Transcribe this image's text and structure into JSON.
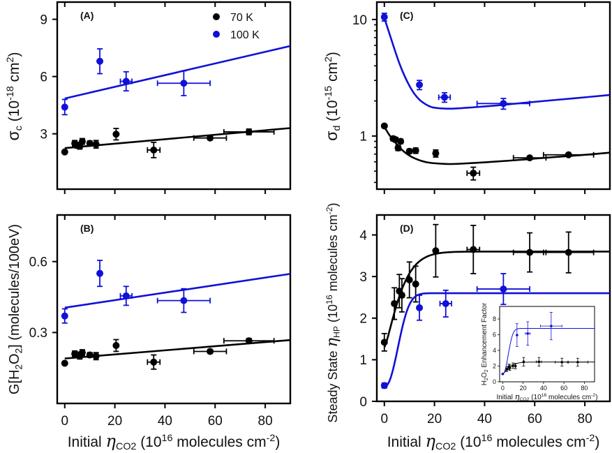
{
  "colors": {
    "series_70K": "#000000",
    "series_100K": "#1010d8",
    "frame": "#000000"
  },
  "legend": {
    "entries": [
      {
        "label": "70 K",
        "series": "70K"
      },
      {
        "label": "100 K",
        "series": "100K"
      }
    ],
    "placement": "top-right of panel A"
  },
  "shared_xlabel": {
    "prefix": "Initial ",
    "symbol": "η",
    "sub": "CO2",
    "unit_open": " (10",
    "unit_exp": "16",
    "unit_mid": " molecules cm",
    "unit_exp2": "-2",
    "unit_close": ")"
  },
  "chart_data": [
    {
      "id": "A",
      "panel_label": "(A)",
      "type": "scatter",
      "title": "",
      "xlabel": "Initial η_CO2 (10^16 molecules cm^-2)",
      "ylabel": "σc (10^-18 cm^2)",
      "ylabel_parts": {
        "sym": "σ",
        "sub": "c",
        "unit_a": " (10",
        "exp": "-18",
        "unit_b": " cm",
        "exp2": "2",
        "unit_c": ")"
      },
      "xlim": [
        -3,
        90
      ],
      "ylim": [
        0.1,
        9.9
      ],
      "yscale": "linear",
      "xticks": [
        0,
        20,
        40,
        60,
        80
      ],
      "xtick_labels_visible": false,
      "yticks": [
        3,
        6,
        9
      ],
      "ytick_labels": [
        "3",
        "6",
        "9"
      ],
      "series": [
        {
          "name": "70 K",
          "color_key": "series_70K",
          "points": [
            {
              "x": 0,
              "y": 2.05,
              "xe": 0,
              "ye": 0
            },
            {
              "x": 4,
              "y": 2.5,
              "xe": 0.8,
              "ye": 0.15
            },
            {
              "x": 5,
              "y": 2.4,
              "xe": 0.8,
              "ye": 0.15
            },
            {
              "x": 6,
              "y": 2.35,
              "xe": 0.8,
              "ye": 0.15
            },
            {
              "x": 7,
              "y": 2.6,
              "xe": 0.8,
              "ye": 0.15
            },
            {
              "x": 10,
              "y": 2.5,
              "xe": 0.8,
              "ye": 0.12
            },
            {
              "x": 12.5,
              "y": 2.45,
              "xe": 0.8,
              "ye": 0.2
            },
            {
              "x": 20.5,
              "y": 2.98,
              "xe": 0.6,
              "ye": 0.3
            },
            {
              "x": 35.5,
              "y": 2.15,
              "xe": 2.5,
              "ye": 0.4
            },
            {
              "x": 58,
              "y": 2.78,
              "xe": 6.5,
              "ye": 0.1
            },
            {
              "x": 73.5,
              "y": 3.1,
              "xe": 10,
              "ye": 0.15
            }
          ],
          "fit": {
            "kind": "linear",
            "x": [
              0,
              90
            ],
            "y": [
              2.25,
              3.3
            ]
          }
        },
        {
          "name": "100 K",
          "color_key": "series_100K",
          "points": [
            {
              "x": 0,
              "y": 4.4,
              "xe": 0,
              "ye": 0.4
            },
            {
              "x": 14,
              "y": 6.8,
              "xe": 0,
              "ye": 0.65
            },
            {
              "x": 24.5,
              "y": 5.75,
              "xe": 2.3,
              "ye": 0.5
            },
            {
              "x": 47.5,
              "y": 5.65,
              "xe": 10.5,
              "ye": 0.65
            }
          ],
          "fit": {
            "kind": "linear",
            "x": [
              0,
              90
            ],
            "y": [
              4.85,
              7.6
            ]
          }
        }
      ]
    },
    {
      "id": "B",
      "panel_label": "(B)",
      "type": "scatter",
      "title": "",
      "xlabel": "Initial η_CO2 (10^16 molecules cm^-2)",
      "ylabel": "G[H2O2] (molecules/100eV)",
      "ylabel_parts": {
        "a": "G[H",
        "s1": "2",
        "b": "O",
        "s2": "2",
        "c": "] (molecules/100eV)"
      },
      "xlim": [
        -3,
        90
      ],
      "ylim": [
        0.0,
        0.797
      ],
      "yscale": "linear",
      "xticks": [
        0,
        20,
        40,
        60,
        80
      ],
      "xtick_labels": [
        "0",
        "20",
        "40",
        "60",
        "80"
      ],
      "yticks": [
        0.3,
        0.6
      ],
      "ytick_labels": [
        "0.3",
        "0.6"
      ],
      "series": [
        {
          "name": "70 K",
          "color_key": "series_70K",
          "points": [
            {
              "x": 0,
              "y": 0.17,
              "xe": 0,
              "ye": 0
            },
            {
              "x": 4,
              "y": 0.21,
              "xe": 0.8,
              "ye": 0.012
            },
            {
              "x": 5,
              "y": 0.205,
              "xe": 0.8,
              "ye": 0.012
            },
            {
              "x": 6,
              "y": 0.2,
              "xe": 0.8,
              "ye": 0.012
            },
            {
              "x": 7,
              "y": 0.215,
              "xe": 0.8,
              "ye": 0.012
            },
            {
              "x": 10,
              "y": 0.205,
              "xe": 0.8,
              "ye": 0.01
            },
            {
              "x": 12.5,
              "y": 0.2,
              "xe": 0.8,
              "ye": 0.015
            },
            {
              "x": 20.5,
              "y": 0.245,
              "xe": 0.6,
              "ye": 0.025
            },
            {
              "x": 35.5,
              "y": 0.175,
              "xe": 2.5,
              "ye": 0.03
            },
            {
              "x": 58,
              "y": 0.22,
              "xe": 6.5,
              "ye": 0.008
            },
            {
              "x": 73.5,
              "y": 0.265,
              "xe": 10,
              "ye": 0.01
            }
          ],
          "fit": {
            "kind": "linear",
            "x": [
              0,
              90
            ],
            "y": [
              0.19,
              0.268
            ]
          }
        },
        {
          "name": "100 K",
          "color_key": "series_100K",
          "points": [
            {
              "x": 0,
              "y": 0.37,
              "xe": 0,
              "ye": 0.03
            },
            {
              "x": 14,
              "y": 0.55,
              "xe": 0,
              "ye": 0.055
            },
            {
              "x": 24.5,
              "y": 0.455,
              "xe": 2.3,
              "ye": 0.04
            },
            {
              "x": 47.5,
              "y": 0.435,
              "xe": 10.5,
              "ye": 0.05
            }
          ],
          "fit": {
            "kind": "linear",
            "x": [
              0,
              90
            ],
            "y": [
              0.405,
              0.548
            ]
          }
        }
      ]
    },
    {
      "id": "C",
      "panel_label": "(C)",
      "type": "scatter",
      "title": "",
      "xlabel": "Initial η_CO2 (10^16 molecules cm^-2)",
      "ylabel": "σd (10^-15 cm^2)",
      "ylabel_parts": {
        "sym": "σ",
        "sub": "d",
        "unit_a": " (10",
        "exp": "-15",
        "unit_b": " cm",
        "exp2": "2",
        "unit_c": ")"
      },
      "xlim": [
        -3,
        90
      ],
      "ylim": [
        0.35,
        14.1
      ],
      "yscale": "log",
      "xticks": [
        0,
        20,
        40,
        60,
        80
      ],
      "xtick_labels_visible": false,
      "yticks": [
        1,
        10
      ],
      "ytick_labels": [
        "1",
        "10"
      ],
      "series": [
        {
          "name": "70 K",
          "color_key": "series_70K",
          "points": [
            {
              "x": 0,
              "y": 1.22,
              "xe": 0,
              "ye": 0
            },
            {
              "x": 3.5,
              "y": 0.95,
              "xe": 0.8,
              "ye": 0.04
            },
            {
              "x": 4.5,
              "y": 0.93,
              "xe": 0.8,
              "ye": 0.04
            },
            {
              "x": 5.5,
              "y": 0.79,
              "xe": 0.8,
              "ye": 0.04
            },
            {
              "x": 6.5,
              "y": 0.9,
              "xe": 0.8,
              "ye": 0.04
            },
            {
              "x": 10,
              "y": 0.74,
              "xe": 0.8,
              "ye": 0.03
            },
            {
              "x": 12.5,
              "y": 0.75,
              "xe": 0.8,
              "ye": 0.04
            },
            {
              "x": 20.5,
              "y": 0.71,
              "xe": 0.6,
              "ye": 0.05
            },
            {
              "x": 35.5,
              "y": 0.48,
              "xe": 2.5,
              "ye": 0.06
            },
            {
              "x": 58,
              "y": 0.65,
              "xe": 6.5,
              "ye": 0.02
            },
            {
              "x": 73.5,
              "y": 0.69,
              "xe": 10,
              "ye": 0.02
            }
          ],
          "fit": {
            "kind": "curve",
            "x": [
              0,
              2,
              4,
              6,
              8,
              10,
              12,
              15,
              18,
              22,
              26,
              30,
              40,
              50,
              60,
              70,
              80,
              90
            ],
            "y": [
              1.2,
              1.02,
              0.9,
              0.8,
              0.73,
              0.68,
              0.645,
              0.61,
              0.59,
              0.58,
              0.575,
              0.578,
              0.595,
              0.615,
              0.64,
              0.665,
              0.69,
              0.72
            ]
          }
        },
        {
          "name": "100 K",
          "color_key": "series_100K",
          "points": [
            {
              "x": 0,
              "y": 10.5,
              "xe": 0,
              "ye": 0.8
            },
            {
              "x": 14,
              "y": 2.75,
              "xe": 0,
              "ye": 0.25
            },
            {
              "x": 24,
              "y": 2.15,
              "xe": 2.3,
              "ye": 0.2
            },
            {
              "x": 47.5,
              "y": 1.9,
              "xe": 10.5,
              "ye": 0.2
            }
          ],
          "fit": {
            "kind": "curve",
            "x": [
              0,
              2,
              4,
              6,
              8,
              10,
              12,
              14,
              16,
              18,
              20,
              24,
              28,
              35,
              45,
              55,
              65,
              75,
              90
            ],
            "y": [
              10.3,
              7.6,
              5.6,
              4.2,
              3.3,
              2.7,
              2.3,
              2.05,
              1.9,
              1.8,
              1.75,
              1.72,
              1.72,
              1.76,
              1.83,
              1.92,
              2.01,
              2.1,
              2.25
            ]
          }
        }
      ]
    },
    {
      "id": "D",
      "panel_label": "(D)",
      "type": "scatter",
      "title": "",
      "xlabel": "Initial η_CO2 (10^16 molecules cm^-2)",
      "ylabel": "Steady State η_HP (10^16 molecules cm^-2)",
      "ylabel_parts": {
        "a": "Steady State ",
        "sym": "η",
        "sub": "HP",
        "b": " (10",
        "exp": "16",
        "c": " molecules cm",
        "exp2": "-2",
        "d": ")"
      },
      "xlim": [
        -3,
        90
      ],
      "ylim": [
        0,
        4.48
      ],
      "yscale": "linear",
      "xticks": [
        0,
        20,
        40,
        60,
        80
      ],
      "xtick_labels": [
        "0",
        "20",
        "40",
        "60",
        "80"
      ],
      "yticks": [
        0,
        1,
        2,
        3,
        4
      ],
      "ytick_labels": [
        "0",
        "1",
        "2",
        "3",
        "4"
      ],
      "series": [
        {
          "name": "70 K",
          "color_key": "series_70K",
          "points": [
            {
              "x": 0,
              "y": 1.42,
              "xe": 0,
              "ye": 0.21
            },
            {
              "x": 4,
              "y": 2.35,
              "xe": 0.8,
              "ye": 0.38
            },
            {
              "x": 6,
              "y": 2.65,
              "xe": 0.8,
              "ye": 0.4
            },
            {
              "x": 7,
              "y": 2.55,
              "xe": 0.8,
              "ye": 0.4
            },
            {
              "x": 10,
              "y": 2.92,
              "xe": 0.5,
              "ye": 0.43
            },
            {
              "x": 12.5,
              "y": 2.82,
              "xe": 0.5,
              "ye": 0.43
            },
            {
              "x": 20.5,
              "y": 3.62,
              "xe": 0.3,
              "ye": 0.63
            },
            {
              "x": 35.5,
              "y": 3.65,
              "xe": 2.5,
              "ye": 0.58
            },
            {
              "x": 58,
              "y": 3.58,
              "xe": 6.5,
              "ye": 0.47
            },
            {
              "x": 73.5,
              "y": 3.58,
              "xe": 10,
              "ye": 0.49
            }
          ],
          "fit": {
            "kind": "sigmoid-saturation",
            "y0": 1.3,
            "ymax": 3.6,
            "rate": 0.135
          }
        },
        {
          "name": "100 K",
          "color_key": "series_100K",
          "points": [
            {
              "x": 0,
              "y": 0.38,
              "xe": 0,
              "ye": 0.06
            },
            {
              "x": 14,
              "y": 2.25,
              "xe": 0,
              "ye": 0.3
            },
            {
              "x": 24.5,
              "y": 2.35,
              "xe": 2.3,
              "ye": 0.32
            },
            {
              "x": 47.5,
              "y": 2.7,
              "xe": 10.5,
              "ye": 0.37
            }
          ],
          "fit": {
            "kind": "sigmoid-saturation",
            "y0": 0.35,
            "ymax": 2.6,
            "rate": 0.14,
            "shape": "sigmoid"
          }
        }
      ],
      "inset": {
        "type": "scatter",
        "xlabel": "Initial η_CO2 (10^16 molecules cm^-2)",
        "ylabel": "H2O2 Enhancement Factor",
        "ylabel_parts": {
          "a": "H",
          "s1": "2",
          "b": "O",
          "s2": "2",
          "c": " Enhancement Factor"
        },
        "xlim": [
          -3,
          90
        ],
        "ylim": [
          0,
          9.6
        ],
        "xticks": [
          0,
          20,
          40,
          60,
          80
        ],
        "xtick_labels": [
          "0",
          "20",
          "40",
          "60",
          "80"
        ],
        "yticks": [
          0,
          2,
          4,
          6,
          8
        ],
        "ytick_labels": [
          "0",
          "2",
          "4",
          "6",
          "8"
        ],
        "series": [
          {
            "name": "70 K",
            "color_key": "series_70K",
            "points": [
              {
                "x": 0,
                "y": 1.0,
                "xe": 0,
                "ye": 0
              },
              {
                "x": 4,
                "y": 1.6,
                "xe": 0.8,
                "ye": 0.3
              },
              {
                "x": 6,
                "y": 1.9,
                "xe": 0.8,
                "ye": 0.35
              },
              {
                "x": 7,
                "y": 1.8,
                "xe": 0.8,
                "ye": 0.35
              },
              {
                "x": 10,
                "y": 2.05,
                "xe": 0.5,
                "ye": 0.35
              },
              {
                "x": 12.5,
                "y": 2.0,
                "xe": 0.5,
                "ye": 0.35
              },
              {
                "x": 20.5,
                "y": 2.55,
                "xe": 0.3,
                "ye": 0.55
              },
              {
                "x": 35.5,
                "y": 2.55,
                "xe": 2.5,
                "ye": 0.55
              },
              {
                "x": 58,
                "y": 2.5,
                "xe": 6.5,
                "ye": 0.5
              },
              {
                "x": 73.5,
                "y": 2.5,
                "xe": 10,
                "ye": 0.5
              }
            ],
            "fit": {
              "kind": "sigmoid-saturation",
              "y0": 1.0,
              "ymax": 2.52,
              "rate": 0.13
            }
          },
          {
            "name": "100 K",
            "color_key": "series_100K",
            "points": [
              {
                "x": 0,
                "y": 1.0,
                "xe": 0,
                "ye": 0
              },
              {
                "x": 14,
                "y": 5.95,
                "xe": 0,
                "ye": 1.45
              },
              {
                "x": 24.5,
                "y": 6.15,
                "xe": 2.3,
                "ye": 1.5
              },
              {
                "x": 47.5,
                "y": 7.1,
                "xe": 10.5,
                "ye": 1.75
              }
            ],
            "fit": {
              "kind": "sigmoid-saturation",
              "y0": 1.0,
              "ymax": 6.8,
              "rate": 0.14,
              "shape": "sigmoid"
            }
          }
        ]
      }
    }
  ]
}
